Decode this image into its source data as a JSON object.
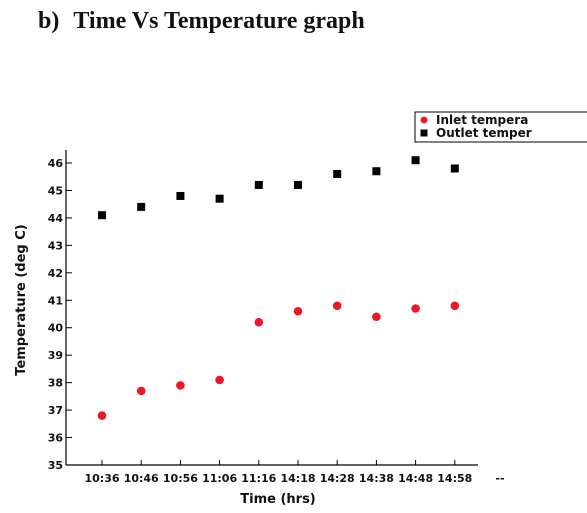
{
  "heading": {
    "label": "b)",
    "text": "Time Vs Temperature graph"
  },
  "chart_data": {
    "type": "scatter",
    "title": "",
    "xlabel": "Time (hrs)",
    "ylabel": "Temperature (deg C)",
    "categories": [
      "10:36",
      "10:46",
      "10:56",
      "11:06",
      "11:16",
      "14:18",
      "14:28",
      "14:38",
      "14:48",
      "14:58",
      "--"
    ],
    "ylim": [
      35,
      46
    ],
    "yticks": [
      35,
      36,
      37,
      38,
      39,
      40,
      41,
      42,
      43,
      44,
      45,
      46
    ],
    "grid": false,
    "legend_position": "top-right",
    "series": [
      {
        "name": "Inlet tempera",
        "marker": "circle",
        "color": "#e8192c",
        "values": [
          36.8,
          37.7,
          37.9,
          38.1,
          40.2,
          40.6,
          40.8,
          40.4,
          40.7,
          40.8
        ]
      },
      {
        "name": "Outlet temper",
        "marker": "square",
        "color": "#000000",
        "values": [
          44.1,
          44.4,
          44.8,
          44.7,
          45.2,
          45.2,
          45.6,
          45.7,
          46.1,
          45.8
        ]
      }
    ]
  }
}
